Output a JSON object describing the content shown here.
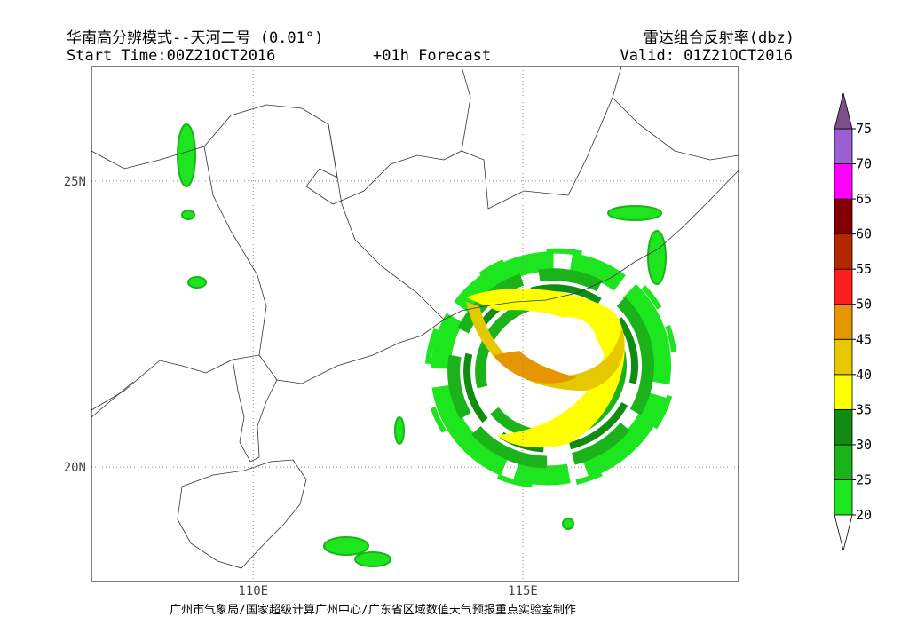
{
  "header": {
    "title": "华南高分辨模式--天河二号 (0.01°)",
    "start_time": "Start Time:00Z21OCT2016",
    "forecast": "+01h Forecast",
    "product": "雷达组合反射率(dbz)",
    "valid": "Valid: 01Z21OCT2016"
  },
  "map": {
    "xlim": [
      107,
      119
    ],
    "ylim": [
      18,
      27
    ],
    "xticks": [
      {
        "value": 110,
        "label": "110E"
      },
      {
        "value": 115,
        "label": "115E"
      }
    ],
    "yticks": [
      {
        "value": 20,
        "label": "20N"
      },
      {
        "value": 25,
        "label": "25N"
      }
    ]
  },
  "colorbar": {
    "levels": [
      20,
      25,
      30,
      35,
      40,
      45,
      50,
      55,
      60,
      65,
      70,
      75
    ],
    "colors": [
      "#1ee61e",
      "#1ab41a",
      "#108c10",
      "#ffff00",
      "#e6c800",
      "#e69600",
      "#ff1e1e",
      "#b42800",
      "#820000",
      "#ff00ff",
      "#9a5fd0"
    ],
    "under_color": "#ffffff",
    "over_color": "#7a4f8a"
  },
  "footer": "广州市气象局/国家超级计算广州中心/广东省区域数值天气预报重点实验室制作"
}
